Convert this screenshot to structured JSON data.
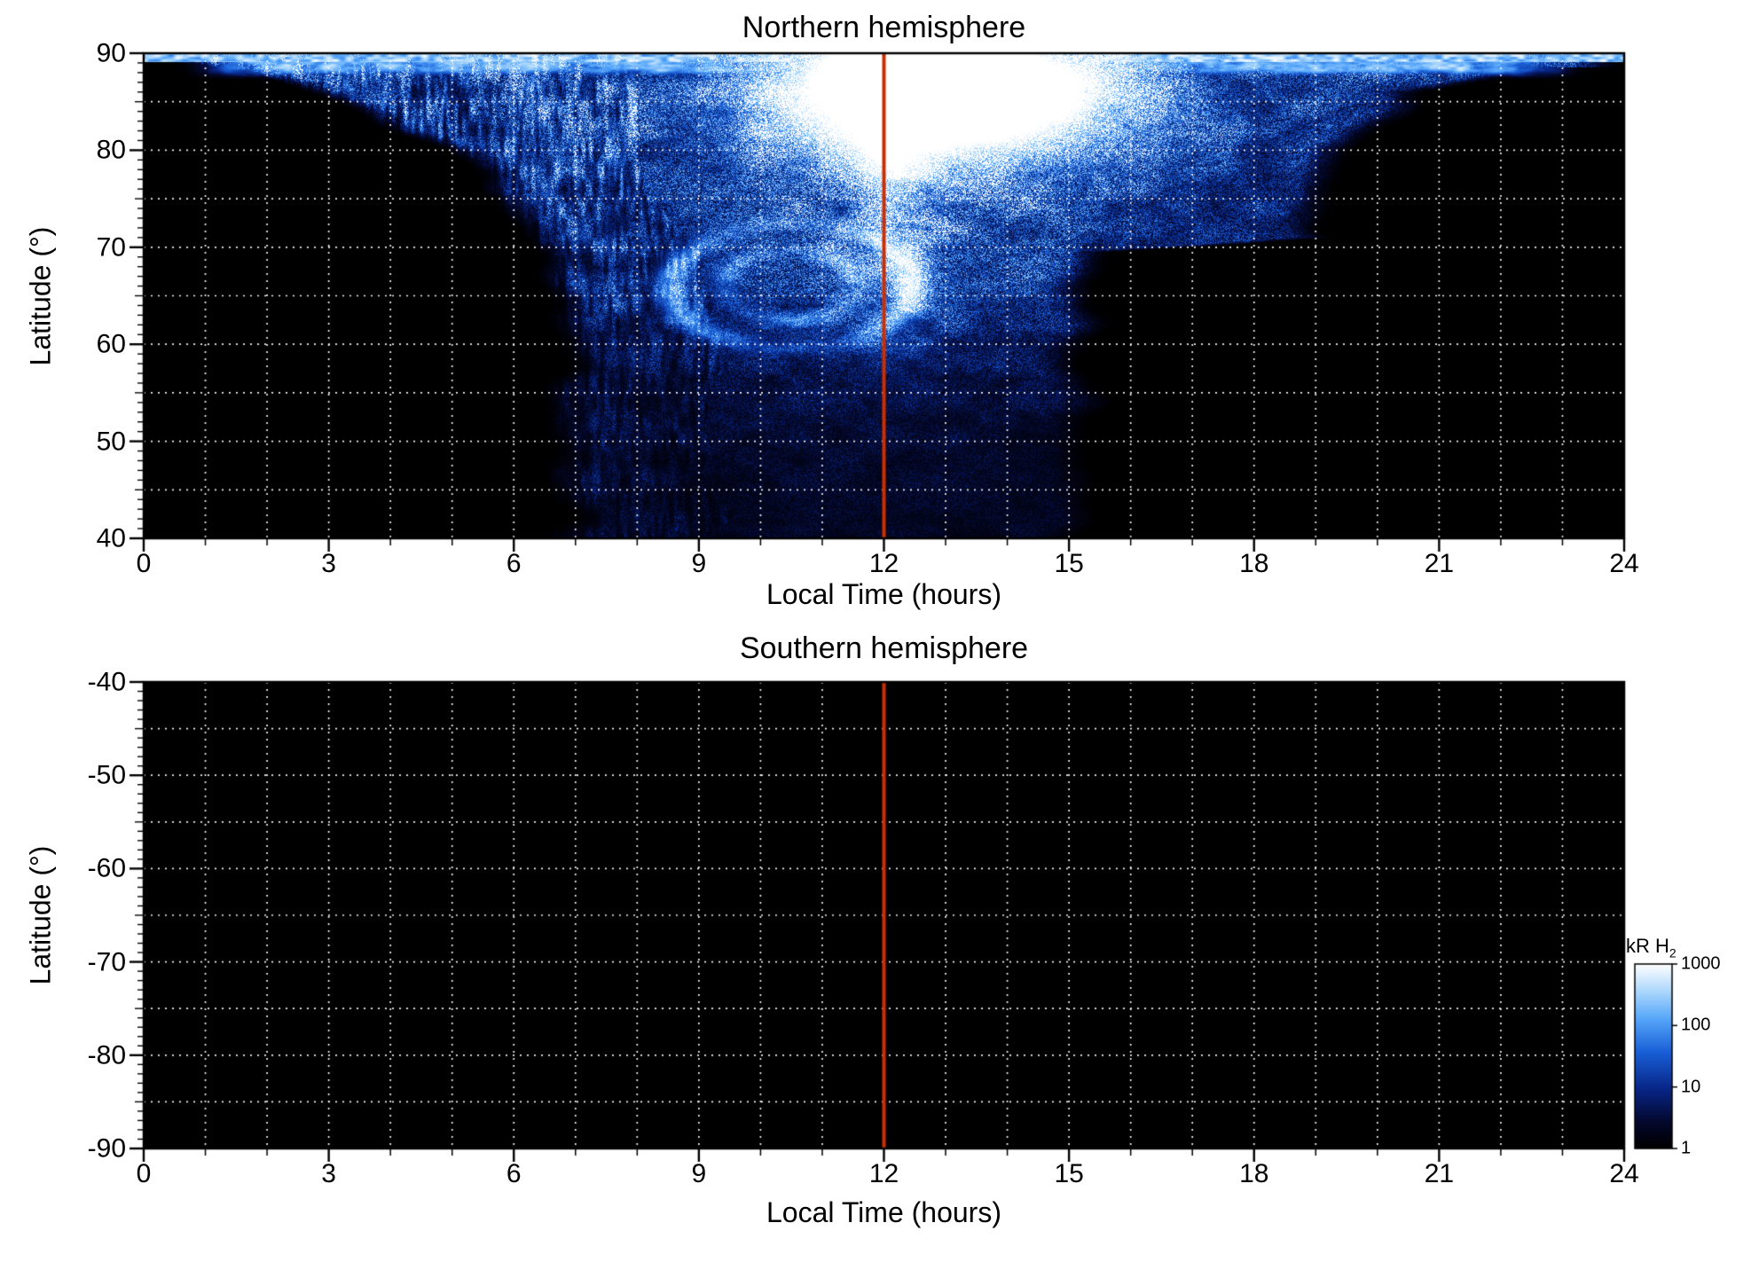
{
  "figure": {
    "background": "#ffffff",
    "accent_line_color": "#cc2e00",
    "grid_color": "rgba(255,255,255,0.95)",
    "frame_color": "#000000"
  },
  "chart_data": [
    {
      "type": "heatmap",
      "panel": "north",
      "title": "Northern hemisphere",
      "xlabel": "Local Time (hours)",
      "ylabel": "Latitude (°)",
      "xlim": [
        0,
        24
      ],
      "ylim": [
        40,
        90
      ],
      "x_ticks": [
        0,
        3,
        6,
        9,
        12,
        15,
        18,
        21,
        24
      ],
      "y_ticks": [
        90,
        80,
        70,
        60,
        50,
        40
      ],
      "grid": {
        "x_step_hours": 1,
        "y_step_deg": 5,
        "style": "dotted white"
      },
      "noon_marker_x": 12,
      "colormap": "black-blue-white, logarithmic 1-1000 kR",
      "emission_summary": {
        "dayside_extent_hours_low_lat": [
          6.6,
          15.4
        ],
        "right_edge_hours_at_lat_71_to_88": [
          19.3,
          23
        ],
        "full_24h_coverage_above_lat_deg": 88.5,
        "brightest_region": {
          "local_time": [
            11,
            14.5
          ],
          "latitude": [
            80,
            90
          ],
          "approx_kR": 1000
        },
        "vortex_feature": {
          "local_time": 10.5,
          "latitude": 66
        },
        "typical_kR": {
          "lat_40_55": 5,
          "lat_55_75": 50,
          "lat_75_90": 300
        }
      }
    },
    {
      "type": "heatmap",
      "panel": "south",
      "title": "Southern hemisphere",
      "xlabel": "Local Time (hours)",
      "ylabel": "Latitude (°)",
      "xlim": [
        0,
        24
      ],
      "ylim": [
        -90,
        -40
      ],
      "x_ticks": [
        0,
        3,
        6,
        9,
        12,
        15,
        18,
        21,
        24
      ],
      "y_ticks": [
        -40,
        -50,
        -60,
        -70,
        -80,
        -90
      ],
      "grid": {
        "x_step_hours": 1,
        "y_step_deg": 5,
        "style": "dotted white"
      },
      "noon_marker_x": 12,
      "emission_summary": {
        "note": "no emission above colour-scale floor; entire panel black (< 1 kR)"
      }
    }
  ],
  "colorbar": {
    "label_main": "kR H",
    "label_sub": "2",
    "scale": "log",
    "min": 1,
    "max": 1000,
    "tick_labels": [
      "1000",
      "100",
      "10",
      "1"
    ]
  }
}
